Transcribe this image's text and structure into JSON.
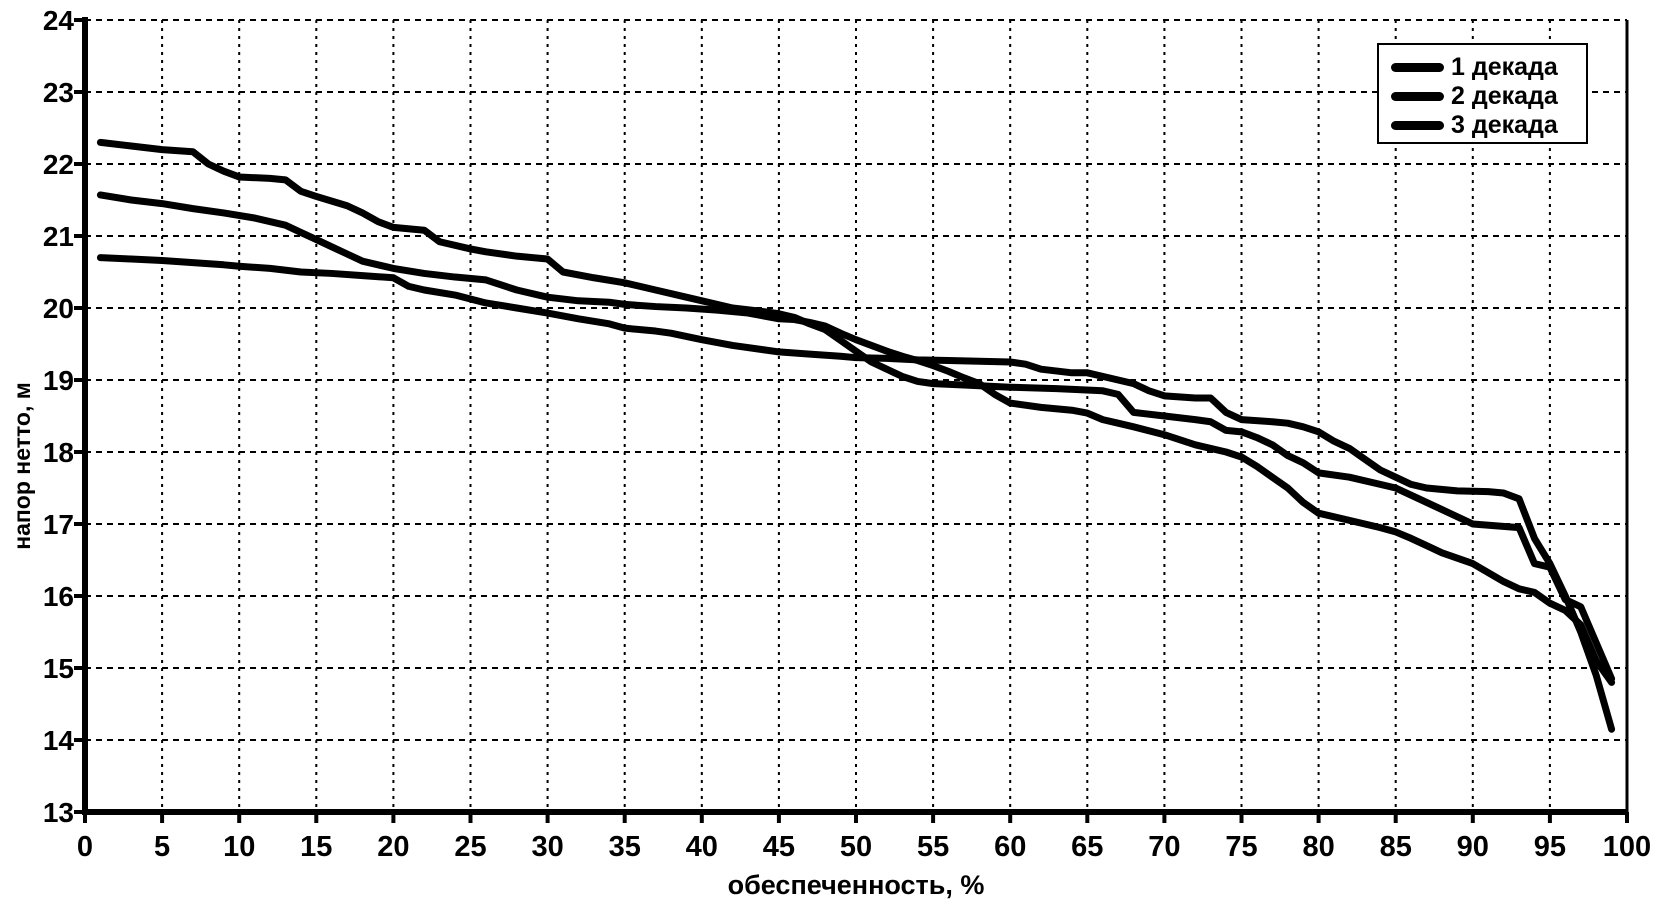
{
  "page": {
    "background_color": "#ffffff",
    "foreground_color": "#000000"
  },
  "chart_data": {
    "type": "line",
    "title": "",
    "xlabel": "обеспеченность, %",
    "ylabel": "напор нетто, м",
    "xlim": [
      0,
      100
    ],
    "ylim": [
      13,
      24
    ],
    "x_ticks": [
      0,
      5,
      10,
      15,
      20,
      25,
      30,
      35,
      40,
      45,
      50,
      55,
      60,
      65,
      70,
      75,
      80,
      85,
      90,
      95,
      100
    ],
    "y_ticks": [
      13,
      14,
      15,
      16,
      17,
      18,
      19,
      20,
      21,
      22,
      23,
      24
    ],
    "grid": true,
    "grid_style": "dashed",
    "legend_position": "top-right",
    "line_color": "#000000",
    "line_width": 7,
    "series": [
      {
        "name": "1 декада",
        "color": "#000000",
        "points": [
          [
            1,
            22.3
          ],
          [
            3,
            22.25
          ],
          [
            5,
            22.2
          ],
          [
            7,
            22.17
          ],
          [
            8,
            22.0
          ],
          [
            9,
            21.9
          ],
          [
            10,
            21.82
          ],
          [
            12,
            21.8
          ],
          [
            13,
            21.78
          ],
          [
            14,
            21.62
          ],
          [
            15,
            21.55
          ],
          [
            17,
            21.42
          ],
          [
            18,
            21.32
          ],
          [
            19,
            21.2
          ],
          [
            20,
            21.12
          ],
          [
            22,
            21.08
          ],
          [
            23,
            20.92
          ],
          [
            25,
            20.82
          ],
          [
            26,
            20.78
          ],
          [
            28,
            20.72
          ],
          [
            30,
            20.68
          ],
          [
            31,
            20.5
          ],
          [
            33,
            20.42
          ],
          [
            35,
            20.35
          ],
          [
            37,
            20.25
          ],
          [
            39,
            20.15
          ],
          [
            41,
            20.05
          ],
          [
            42,
            20.0
          ],
          [
            44,
            19.95
          ],
          [
            45,
            19.92
          ],
          [
            46,
            19.87
          ],
          [
            47,
            19.78
          ],
          [
            48,
            19.7
          ],
          [
            49,
            19.55
          ],
          [
            50,
            19.4
          ],
          [
            51,
            19.25
          ],
          [
            52,
            19.15
          ],
          [
            53,
            19.05
          ],
          [
            54,
            18.98
          ],
          [
            55,
            18.95
          ],
          [
            57,
            18.93
          ],
          [
            60,
            18.9
          ],
          [
            63,
            18.88
          ],
          [
            66,
            18.85
          ],
          [
            67,
            18.8
          ],
          [
            68,
            18.55
          ],
          [
            70,
            18.5
          ],
          [
            72,
            18.45
          ],
          [
            73,
            18.42
          ],
          [
            74,
            18.3
          ],
          [
            75,
            18.28
          ],
          [
            76,
            18.2
          ],
          [
            77,
            18.1
          ],
          [
            78,
            17.95
          ],
          [
            79,
            17.85
          ],
          [
            80,
            17.71
          ],
          [
            82,
            17.65
          ],
          [
            84,
            17.55
          ],
          [
            85,
            17.5
          ],
          [
            86,
            17.4
          ],
          [
            88,
            17.2
          ],
          [
            90,
            17.0
          ],
          [
            93,
            16.95
          ],
          [
            94,
            16.45
          ],
          [
            95,
            16.4
          ],
          [
            96,
            15.95
          ],
          [
            97,
            15.85
          ],
          [
            98,
            15.35
          ],
          [
            99,
            14.85
          ]
        ]
      },
      {
        "name": "2 декада",
        "color": "#000000",
        "points": [
          [
            1,
            21.57
          ],
          [
            3,
            21.5
          ],
          [
            5,
            21.45
          ],
          [
            7,
            21.38
          ],
          [
            9,
            21.32
          ],
          [
            11,
            21.25
          ],
          [
            13,
            21.15
          ],
          [
            14,
            21.05
          ],
          [
            15,
            20.95
          ],
          [
            16,
            20.85
          ],
          [
            17,
            20.75
          ],
          [
            18,
            20.65
          ],
          [
            19,
            20.6
          ],
          [
            20,
            20.55
          ],
          [
            22,
            20.48
          ],
          [
            24,
            20.43
          ],
          [
            26,
            20.39
          ],
          [
            28,
            20.25
          ],
          [
            30,
            20.15
          ],
          [
            32,
            20.1
          ],
          [
            34,
            20.08
          ],
          [
            35,
            20.05
          ],
          [
            37,
            20.02
          ],
          [
            39,
            20.0
          ],
          [
            41,
            19.97
          ],
          [
            43,
            19.93
          ],
          [
            45,
            19.85
          ],
          [
            46,
            19.84
          ],
          [
            47,
            19.8
          ],
          [
            48,
            19.75
          ],
          [
            49,
            19.65
          ],
          [
            50,
            19.56
          ],
          [
            51,
            19.48
          ],
          [
            52,
            19.4
          ],
          [
            53,
            19.33
          ],
          [
            54,
            19.27
          ],
          [
            55,
            19.2
          ],
          [
            56,
            19.12
          ],
          [
            57,
            19.03
          ],
          [
            58,
            18.95
          ],
          [
            59,
            18.8
          ],
          [
            60,
            18.68
          ],
          [
            62,
            18.62
          ],
          [
            64,
            18.58
          ],
          [
            65,
            18.54
          ],
          [
            66,
            18.45
          ],
          [
            67,
            18.4
          ],
          [
            68,
            18.35
          ],
          [
            70,
            18.24
          ],
          [
            72,
            18.1
          ],
          [
            74,
            18.0
          ],
          [
            75,
            17.93
          ],
          [
            76,
            17.8
          ],
          [
            77,
            17.65
          ],
          [
            78,
            17.5
          ],
          [
            79,
            17.3
          ],
          [
            80,
            17.15
          ],
          [
            82,
            17.05
          ],
          [
            84,
            16.95
          ],
          [
            85,
            16.89
          ],
          [
            86,
            16.8
          ],
          [
            87,
            16.7
          ],
          [
            88,
            16.6
          ],
          [
            90,
            16.45
          ],
          [
            92,
            16.2
          ],
          [
            93,
            16.1
          ],
          [
            94,
            16.05
          ],
          [
            95,
            15.9
          ],
          [
            96,
            15.8
          ],
          [
            97,
            15.6
          ],
          [
            98,
            15.1
          ],
          [
            99,
            14.8
          ]
        ]
      },
      {
        "name": "3 декада",
        "color": "#000000",
        "points": [
          [
            1,
            20.7
          ],
          [
            3,
            20.68
          ],
          [
            5,
            20.66
          ],
          [
            7,
            20.63
          ],
          [
            9,
            20.6
          ],
          [
            10,
            20.58
          ],
          [
            12,
            20.55
          ],
          [
            14,
            20.5
          ],
          [
            16,
            20.48
          ],
          [
            18,
            20.45
          ],
          [
            20,
            20.42
          ],
          [
            21,
            20.3
          ],
          [
            22,
            20.25
          ],
          [
            24,
            20.18
          ],
          [
            26,
            20.07
          ],
          [
            28,
            20.0
          ],
          [
            30,
            19.93
          ],
          [
            32,
            19.85
          ],
          [
            34,
            19.78
          ],
          [
            35,
            19.72
          ],
          [
            37,
            19.68
          ],
          [
            38,
            19.65
          ],
          [
            40,
            19.56
          ],
          [
            42,
            19.48
          ],
          [
            44,
            19.42
          ],
          [
            45,
            19.39
          ],
          [
            47,
            19.36
          ],
          [
            49,
            19.33
          ],
          [
            50,
            19.31
          ],
          [
            52,
            19.3
          ],
          [
            54,
            19.28
          ],
          [
            56,
            19.27
          ],
          [
            58,
            19.26
          ],
          [
            60,
            19.25
          ],
          [
            61,
            19.22
          ],
          [
            62,
            19.15
          ],
          [
            64,
            19.1
          ],
          [
            65,
            19.1
          ],
          [
            66,
            19.05
          ],
          [
            67,
            19.0
          ],
          [
            68,
            18.95
          ],
          [
            69,
            18.85
          ],
          [
            70,
            18.78
          ],
          [
            72,
            18.75
          ],
          [
            73,
            18.75
          ],
          [
            74,
            18.55
          ],
          [
            75,
            18.45
          ],
          [
            77,
            18.42
          ],
          [
            78,
            18.4
          ],
          [
            79,
            18.35
          ],
          [
            80,
            18.28
          ],
          [
            81,
            18.15
          ],
          [
            82,
            18.05
          ],
          [
            83,
            17.9
          ],
          [
            84,
            17.75
          ],
          [
            85,
            17.65
          ],
          [
            86,
            17.55
          ],
          [
            87,
            17.5
          ],
          [
            89,
            17.46
          ],
          [
            91,
            17.45
          ],
          [
            92,
            17.43
          ],
          [
            93,
            17.35
          ],
          [
            94,
            16.8
          ],
          [
            95,
            16.45
          ],
          [
            96,
            16.0
          ],
          [
            97,
            15.5
          ],
          [
            98,
            14.9
          ],
          [
            99,
            14.15
          ]
        ]
      }
    ]
  },
  "legend": {
    "items": [
      {
        "label": "1 декада"
      },
      {
        "label": "2 декада"
      },
      {
        "label": "3 декада"
      }
    ]
  }
}
